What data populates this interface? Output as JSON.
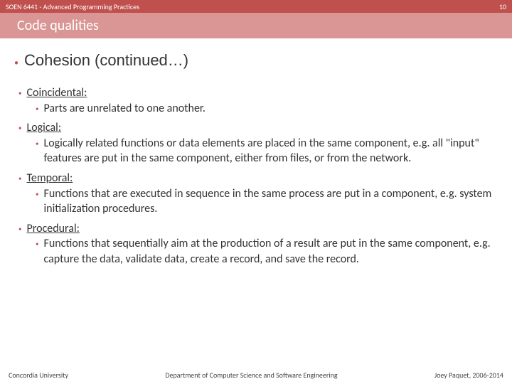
{
  "colors": {
    "topbar_bg": "#c0504d",
    "topbar_text": "#ffffff",
    "titlebar_bg": "#d99694",
    "titlebar_text": "#ffffff",
    "body_text": "#333333",
    "bullet": "#c0504d"
  },
  "topbar": {
    "course": "SOEN 6441 - Advanced Programming Practices",
    "page_number": "10"
  },
  "titlebar": {
    "title": "Code qualities"
  },
  "heading": "Cohesion (continued…)",
  "items": [
    {
      "label": "Coincidental:",
      "desc": "Parts are unrelated to one another."
    },
    {
      "label": "Logical:",
      "desc": "Logically related functions or data elements are placed in the same component, e.g. all \"input\" features are put in the same component, either from files, or from the network."
    },
    {
      "label": "Temporal:",
      "desc": "Functions that are executed in sequence in the same process are put in a component, e.g. system initialization procedures."
    },
    {
      "label": "Procedural:",
      "desc": "Functions that sequentially aim at the production of a result are put in the same component, e.g. capture the data, validate data, create a record, and save the record."
    }
  ],
  "footer": {
    "left": "Concordia University",
    "center": "Department of Computer Science and Software Engineering",
    "right": "Joey Paquet, 2006-2014"
  }
}
